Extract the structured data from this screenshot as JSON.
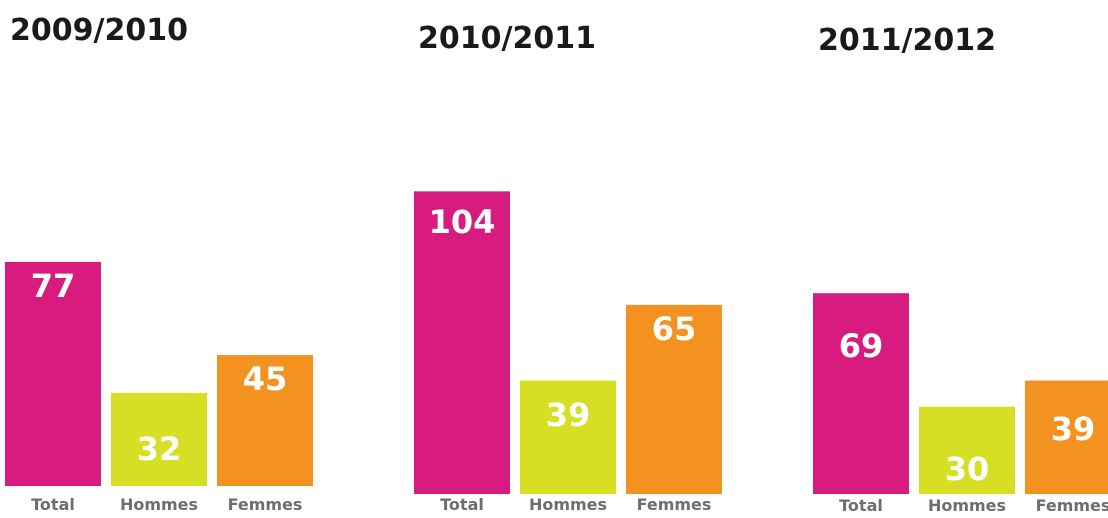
{
  "chart_data": [
    {
      "type": "bar",
      "title": "2009/2010",
      "categories": [
        "Total",
        "Hommes",
        "Femmes"
      ],
      "values": [
        77,
        32,
        45
      ],
      "colors": [
        "#d81b7f",
        "#d6df23",
        "#f39220"
      ]
    },
    {
      "type": "bar",
      "title": "2010/2011",
      "categories": [
        "Total",
        "Hommes",
        "Femmes"
      ],
      "values": [
        104,
        39,
        65
      ],
      "colors": [
        "#d81b7f",
        "#d6df23",
        "#f39220"
      ]
    },
    {
      "type": "bar",
      "title": "2011/2012",
      "categories": [
        "Total",
        "Hommes",
        "Femmes"
      ],
      "values": [
        69,
        30,
        39
      ],
      "colors": [
        "#d81b7f",
        "#d6df23",
        "#f39220"
      ]
    }
  ]
}
